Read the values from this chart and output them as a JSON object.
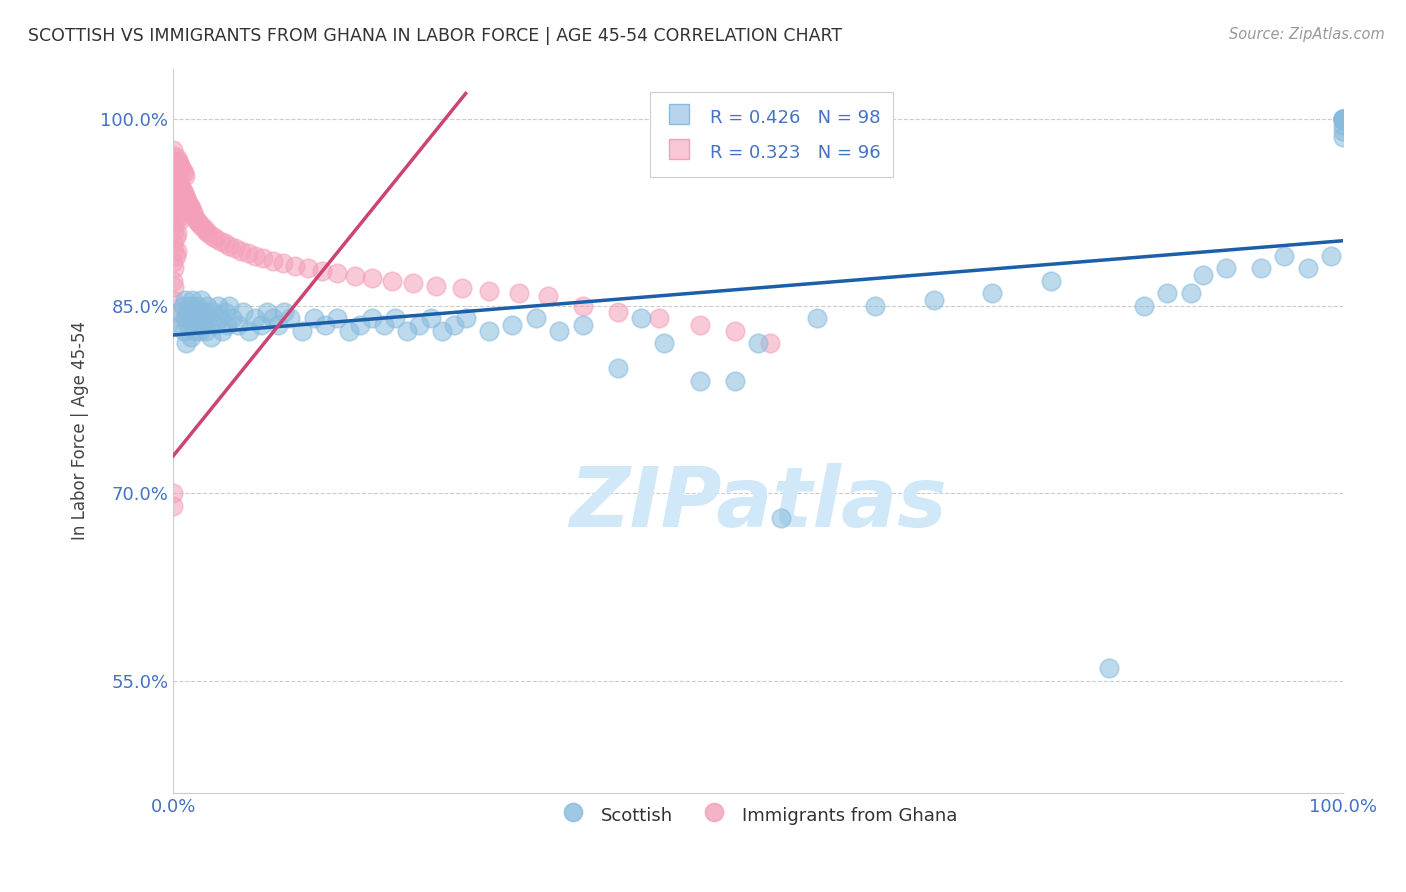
{
  "title": "SCOTTISH VS IMMIGRANTS FROM GHANA IN LABOR FORCE | AGE 45-54 CORRELATION CHART",
  "source": "Source: ZipAtlas.com",
  "ylabel": "In Labor Force | Age 45-54",
  "xlim": [
    0.0,
    1.0
  ],
  "ylim": [
    0.46,
    1.04
  ],
  "y_tick_values": [
    0.55,
    0.7,
    0.85,
    1.0
  ],
  "y_tick_labels": [
    "55.0%",
    "70.0%",
    "85.0%",
    "100.0%"
  ],
  "x_tick_labels": [
    "0.0%",
    "100.0%"
  ],
  "blue_color": "#88bbdd",
  "pink_color": "#f4a0b8",
  "blue_line_color": "#1a5fa8",
  "pink_line_color": "#cc4477",
  "axis_color": "#4472C4",
  "watermark_color": "#d0e8f8",
  "title_color": "#333333",
  "source_color": "#999999",
  "blue_R": 0.426,
  "blue_N": 98,
  "pink_R": 0.323,
  "pink_N": 96,
  "blue_scatter_x": [
    0.005,
    0.007,
    0.008,
    0.009,
    0.01,
    0.01,
    0.011,
    0.012,
    0.013,
    0.014,
    0.015,
    0.015,
    0.016,
    0.017,
    0.018,
    0.019,
    0.02,
    0.02,
    0.021,
    0.022,
    0.023,
    0.024,
    0.025,
    0.026,
    0.027,
    0.028,
    0.029,
    0.03,
    0.032,
    0.034,
    0.036,
    0.038,
    0.04,
    0.042,
    0.044,
    0.046,
    0.048,
    0.05,
    0.055,
    0.06,
    0.065,
    0.07,
    0.075,
    0.08,
    0.085,
    0.09,
    0.095,
    0.1,
    0.11,
    0.12,
    0.13,
    0.14,
    0.15,
    0.16,
    0.17,
    0.18,
    0.19,
    0.2,
    0.21,
    0.22,
    0.23,
    0.24,
    0.25,
    0.27,
    0.29,
    0.31,
    0.33,
    0.35,
    0.38,
    0.4,
    0.42,
    0.45,
    0.48,
    0.5,
    0.52,
    0.55,
    0.6,
    0.65,
    0.7,
    0.75,
    0.8,
    0.83,
    0.85,
    0.87,
    0.88,
    0.9,
    0.93,
    0.95,
    0.97,
    0.99,
    1.0,
    1.0,
    1.0,
    1.0,
    1.0,
    1.0,
    1.0,
    1.0
  ],
  "blue_scatter_y": [
    0.845,
    0.835,
    0.85,
    0.83,
    0.84,
    0.855,
    0.82,
    0.845,
    0.835,
    0.85,
    0.84,
    0.825,
    0.855,
    0.835,
    0.845,
    0.83,
    0.85,
    0.84,
    0.835,
    0.845,
    0.83,
    0.855,
    0.84,
    0.835,
    0.845,
    0.83,
    0.85,
    0.84,
    0.825,
    0.845,
    0.835,
    0.85,
    0.84,
    0.83,
    0.845,
    0.835,
    0.85,
    0.84,
    0.835,
    0.845,
    0.83,
    0.84,
    0.835,
    0.845,
    0.84,
    0.835,
    0.845,
    0.84,
    0.83,
    0.84,
    0.835,
    0.84,
    0.83,
    0.835,
    0.84,
    0.835,
    0.84,
    0.83,
    0.835,
    0.84,
    0.83,
    0.835,
    0.84,
    0.83,
    0.835,
    0.84,
    0.83,
    0.835,
    0.8,
    0.84,
    0.82,
    0.79,
    0.79,
    0.82,
    0.68,
    0.84,
    0.85,
    0.855,
    0.86,
    0.87,
    0.56,
    0.85,
    0.86,
    0.86,
    0.875,
    0.88,
    0.88,
    0.89,
    0.88,
    0.89,
    0.99,
    1.0,
    0.985,
    1.0,
    0.995,
    1.0,
    1.0,
    1.0
  ],
  "pink_scatter_x": [
    0.0,
    0.0,
    0.0,
    0.0,
    0.0,
    0.0,
    0.0,
    0.0,
    0.0,
    0.0,
    0.001,
    0.001,
    0.001,
    0.001,
    0.001,
    0.001,
    0.001,
    0.001,
    0.002,
    0.002,
    0.002,
    0.002,
    0.002,
    0.002,
    0.003,
    0.003,
    0.003,
    0.003,
    0.003,
    0.003,
    0.004,
    0.004,
    0.004,
    0.004,
    0.005,
    0.005,
    0.005,
    0.005,
    0.006,
    0.006,
    0.007,
    0.007,
    0.008,
    0.008,
    0.009,
    0.009,
    0.01,
    0.01,
    0.011,
    0.012,
    0.013,
    0.014,
    0.015,
    0.016,
    0.017,
    0.018,
    0.019,
    0.02,
    0.022,
    0.024,
    0.026,
    0.028,
    0.03,
    0.033,
    0.036,
    0.04,
    0.044,
    0.048,
    0.053,
    0.058,
    0.064,
    0.07,
    0.077,
    0.085,
    0.094,
    0.104,
    0.115,
    0.127,
    0.14,
    0.155,
    0.17,
    0.187,
    0.205,
    0.225,
    0.247,
    0.27,
    0.296,
    0.32,
    0.35,
    0.38,
    0.415,
    0.45,
    0.48,
    0.51,
    0.0,
    0.0
  ],
  "pink_scatter_y": [
    0.975,
    0.96,
    0.945,
    0.93,
    0.915,
    0.9,
    0.885,
    0.87,
    0.855,
    0.84,
    0.97,
    0.955,
    0.94,
    0.925,
    0.91,
    0.895,
    0.88,
    0.865,
    0.965,
    0.95,
    0.935,
    0.92,
    0.905,
    0.89,
    0.968,
    0.952,
    0.938,
    0.922,
    0.908,
    0.894,
    0.966,
    0.95,
    0.936,
    0.92,
    0.964,
    0.948,
    0.934,
    0.918,
    0.962,
    0.946,
    0.96,
    0.944,
    0.958,
    0.942,
    0.956,
    0.94,
    0.954,
    0.938,
    0.936,
    0.934,
    0.932,
    0.93,
    0.928,
    0.926,
    0.924,
    0.922,
    0.92,
    0.918,
    0.916,
    0.914,
    0.912,
    0.91,
    0.908,
    0.906,
    0.904,
    0.902,
    0.9,
    0.898,
    0.896,
    0.894,
    0.892,
    0.89,
    0.888,
    0.886,
    0.884,
    0.882,
    0.88,
    0.878,
    0.876,
    0.874,
    0.872,
    0.87,
    0.868,
    0.866,
    0.864,
    0.862,
    0.86,
    0.858,
    0.85,
    0.845,
    0.84,
    0.835,
    0.83,
    0.82,
    0.7,
    0.69
  ]
}
